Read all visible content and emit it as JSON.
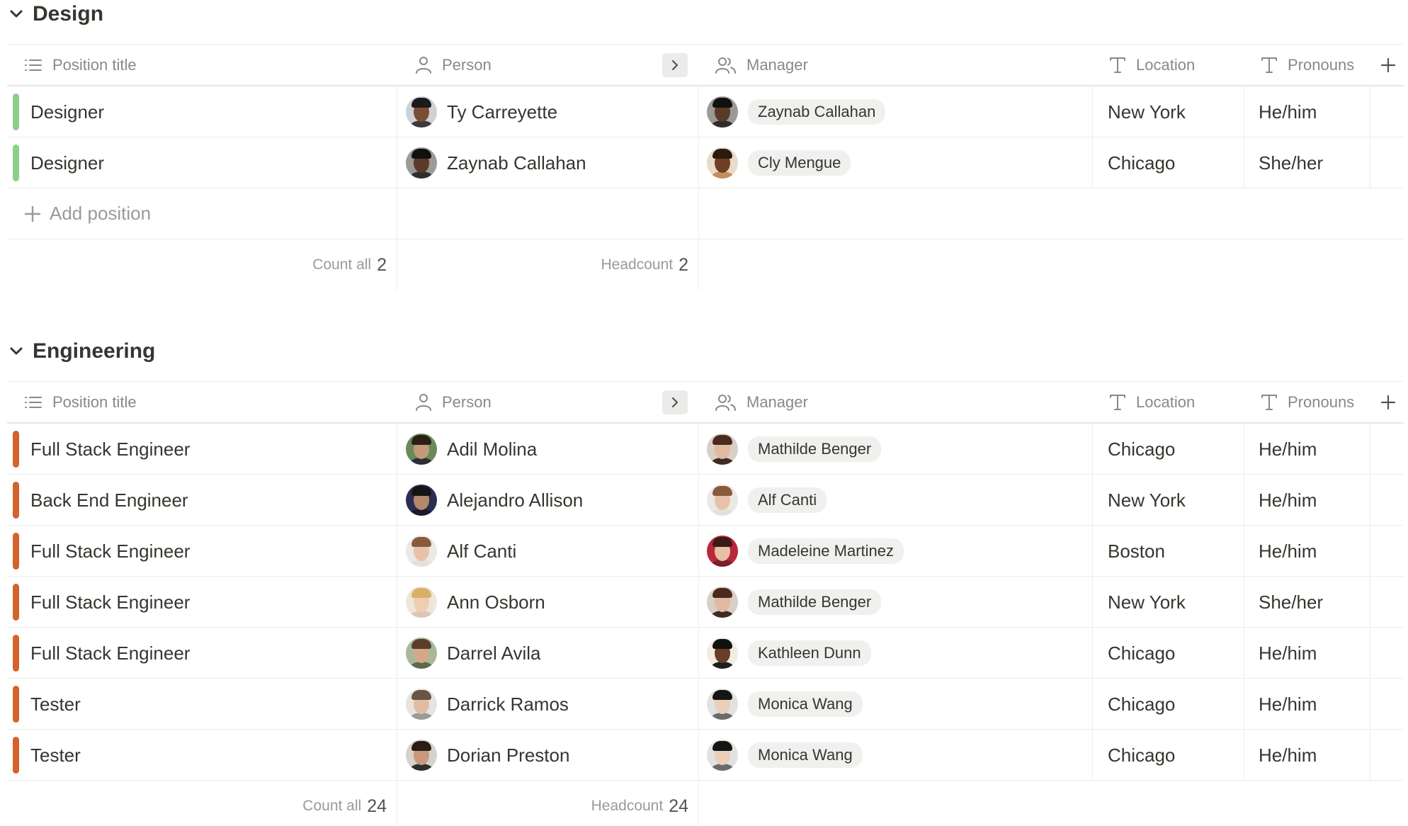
{
  "columns": {
    "position_title": "Position title",
    "person": "Person",
    "manager": "Manager",
    "location": "Location",
    "pronouns": "Pronouns"
  },
  "groups": [
    {
      "title": "Design",
      "accent": "#8ccf8a",
      "rows": [
        {
          "title": "Designer",
          "person": "Ty Carreyette",
          "manager": "Zaynab Callahan",
          "location": "New York",
          "pronouns": "He/him"
        },
        {
          "title": "Designer",
          "person": "Zaynab Callahan",
          "manager": "Cly Mengue",
          "location": "Chicago",
          "pronouns": "She/her"
        }
      ],
      "add_label": "Add position",
      "count_label": "Count all",
      "count_value": "2",
      "headcount_label": "Headcount",
      "headcount_value": "2"
    },
    {
      "title": "Engineering",
      "accent": "#d4622b",
      "rows": [
        {
          "title": "Full Stack Engineer",
          "person": "Adil Molina",
          "manager": "Mathilde Benger",
          "location": "Chicago",
          "pronouns": "He/him"
        },
        {
          "title": "Back End Engineer",
          "person": "Alejandro Allison",
          "manager": "Alf Canti",
          "location": "New York",
          "pronouns": "He/him"
        },
        {
          "title": "Full Stack Engineer",
          "person": "Alf Canti",
          "manager": "Madeleine Martinez",
          "location": "Boston",
          "pronouns": "He/him"
        },
        {
          "title": "Full Stack Engineer",
          "person": "Ann Osborn",
          "manager": "Mathilde Benger",
          "location": "New York",
          "pronouns": "She/her"
        },
        {
          "title": "Full Stack Engineer",
          "person": "Darrel Avila",
          "manager": "Kathleen Dunn",
          "location": "Chicago",
          "pronouns": "He/him"
        },
        {
          "title": "Tester",
          "person": "Darrick Ramos",
          "manager": "Monica Wang",
          "location": "Chicago",
          "pronouns": "He/him"
        },
        {
          "title": "Tester",
          "person": "Dorian Preston",
          "manager": "Monica Wang",
          "location": "Chicago",
          "pronouns": "He/him"
        }
      ],
      "count_label": "Count all",
      "count_value": "24",
      "headcount_label": "Headcount",
      "headcount_value": "24"
    }
  ]
}
